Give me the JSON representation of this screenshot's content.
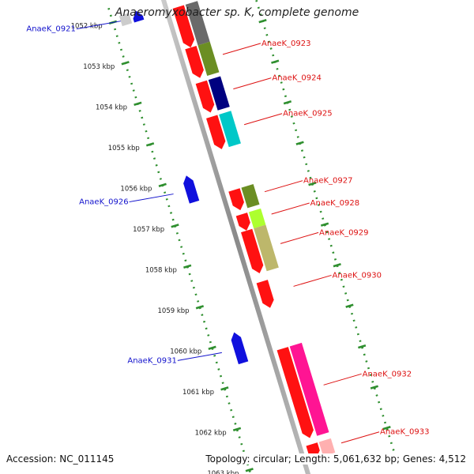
{
  "title": "Anaeromyxobacter sp. K, complete genome",
  "footer": {
    "accession": "Accession: NC_011145",
    "summary": "Topology: circular; Length: 5,061,632 bp; Genes: 4,512"
  },
  "colors": {
    "backbone": "#9a9a9a",
    "scale": "#2f8f2f",
    "forward_label": "#dd1111",
    "reverse_label": "#1111cc",
    "forward_gene": "#ff1111",
    "reverse_gene": "#1010dd"
  },
  "scale": {
    "labels": [
      "1052 kbp",
      "1053 kbp",
      "1054 kbp",
      "1055 kbp",
      "1056 kbp",
      "1057 kbp",
      "1058 kbp",
      "1059 kbp",
      "1060 kbp",
      "1061 kbp",
      "1062 kbp",
      "1063 kbp"
    ],
    "kbp": [
      1052,
      1053,
      1054,
      1055,
      1056,
      1057,
      1058,
      1059,
      1060,
      1061,
      1062,
      1063
    ]
  },
  "genes": [
    {
      "label": "AnaeK_0921",
      "strand": "reverse",
      "kbp_start": 1051.9,
      "kbp_end": 1052.15,
      "fc": "#cccccc"
    },
    {
      "label": "",
      "strand": "forward",
      "kbp_start": 1052.1,
      "kbp_end": 1053.1,
      "fc": "#6a6a6a"
    },
    {
      "label": "AnaeK_0923",
      "strand": "forward",
      "kbp_start": 1053.1,
      "kbp_end": 1053.85,
      "fc": "#6b8e23"
    },
    {
      "label": "AnaeK_0924",
      "strand": "forward",
      "kbp_start": 1053.95,
      "kbp_end": 1054.7,
      "fc": "#000080"
    },
    {
      "label": "AnaeK_0925",
      "strand": "forward",
      "kbp_start": 1054.8,
      "kbp_end": 1055.6,
      "fc": "#00c8c8"
    },
    {
      "label": "AnaeK_0926",
      "strand": "reverse",
      "kbp_start": 1055.95,
      "kbp_end": 1056.6,
      "fc": ""
    },
    {
      "label": "AnaeK_0927",
      "strand": "forward",
      "kbp_start": 1056.6,
      "kbp_end": 1057.1,
      "fc": "#6b8e23"
    },
    {
      "label": "AnaeK_0928",
      "strand": "forward",
      "kbp_start": 1057.2,
      "kbp_end": 1057.6,
      "fc": "#adff2f"
    },
    {
      "label": "AnaeK_0929",
      "strand": "forward",
      "kbp_start": 1057.6,
      "kbp_end": 1058.65,
      "fc": "#bdb76b"
    },
    {
      "label": "AnaeK_0930",
      "strand": "forward",
      "kbp_start": 1058.85,
      "kbp_end": 1059.5,
      "fc": ""
    },
    {
      "label": "AnaeK_0931",
      "strand": "reverse",
      "kbp_start": 1059.8,
      "kbp_end": 1060.55,
      "fc": ""
    },
    {
      "label": "AnaeK_0932",
      "strand": "forward",
      "kbp_start": 1060.5,
      "kbp_end": 1062.7,
      "fc": "#ff1493"
    },
    {
      "label": "AnaeK_0933",
      "strand": "forward",
      "kbp_start": 1062.85,
      "kbp_end": 1063.2,
      "fc": "#ffb0b0"
    },
    {
      "label": "",
      "strand": "reverse",
      "kbp_start": 1063.3,
      "kbp_end": 1063.6,
      "fc": ""
    }
  ]
}
